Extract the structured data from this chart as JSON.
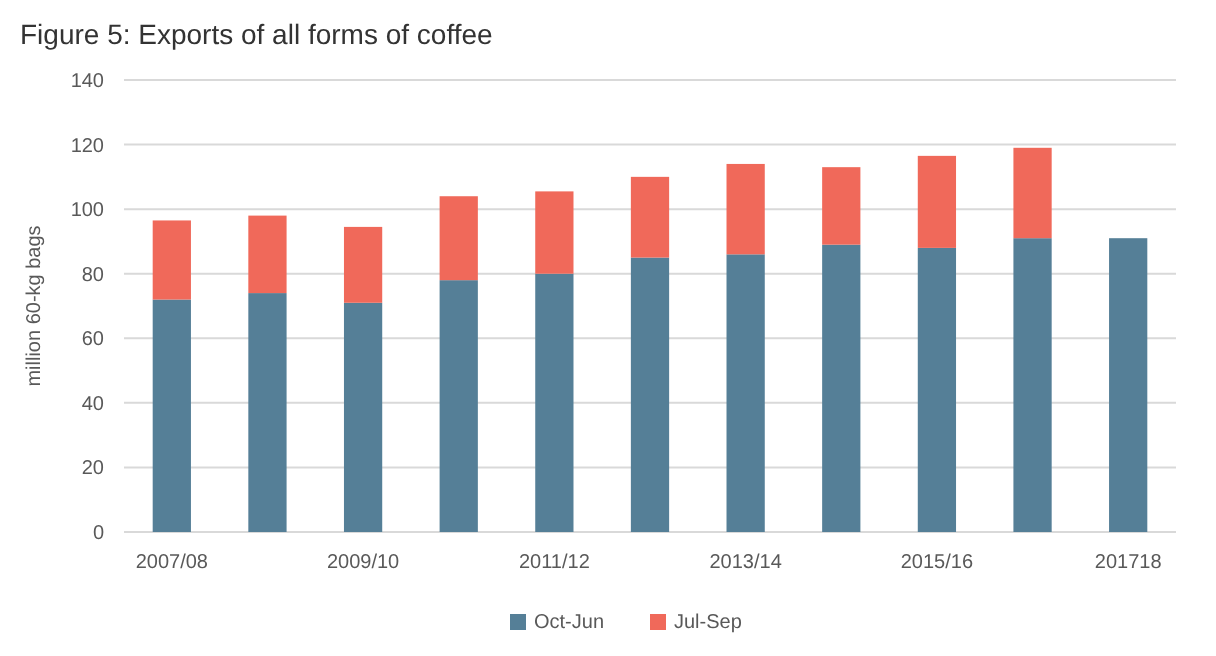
{
  "chart_data": {
    "type": "bar",
    "title": "Figure 5: Exports of all forms of coffee",
    "ylabel": "million 60-kg bags",
    "categories": [
      "2007/08",
      null,
      "2009/10",
      null,
      "2011/12",
      null,
      "2013/14",
      null,
      "2015/16",
      null,
      "201718"
    ],
    "stacked": true,
    "series": [
      {
        "name": "Oct-Jun",
        "color": "#557f97",
        "values": [
          72,
          74,
          71,
          78,
          80,
          85,
          86,
          89,
          88,
          91,
          91
        ]
      },
      {
        "name": "Jul-Sep",
        "color": "#f0695a",
        "values": [
          24.5,
          24,
          23.5,
          26,
          25.5,
          25,
          28,
          24,
          28.5,
          28,
          null
        ]
      }
    ],
    "ylim": [
      0,
      140
    ],
    "yticks": [
      0,
      20,
      40,
      60,
      80,
      100,
      120,
      140
    ],
    "grid": "y",
    "legend": "bottom"
  }
}
